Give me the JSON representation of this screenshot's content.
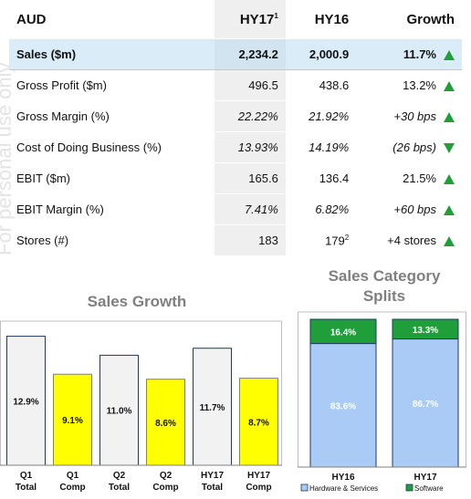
{
  "table": {
    "headers": [
      "AUD",
      "HY17",
      "1",
      "HY16",
      "Growth"
    ],
    "rows": [
      {
        "label": "Sales ($m)",
        "hy17": "2,234.2",
        "hy16": "2,000.9",
        "growth": "11.7%",
        "dir": "up",
        "italic": false,
        "highlight": true
      },
      {
        "label": "Gross Profit ($m)",
        "hy17": "496.5",
        "hy16": "438.6",
        "growth": "13.2%",
        "dir": "up",
        "italic": false,
        "highlight": false
      },
      {
        "label": "Gross Margin (%)",
        "hy17": "22.22%",
        "hy16": "21.92%",
        "growth": "+30 bps",
        "dir": "up",
        "italic": true,
        "highlight": false
      },
      {
        "label": "Cost of Doing Business (%)",
        "hy17": "13.93%",
        "hy16": "14.19%",
        "growth": "(26 bps)",
        "dir": "down",
        "italic": true,
        "highlight": false
      },
      {
        "label": "EBIT ($m)",
        "hy17": "165.6",
        "hy16": "136.4",
        "growth": "21.5%",
        "dir": "up",
        "italic": false,
        "highlight": false
      },
      {
        "label": "EBIT Margin (%)",
        "hy17": "7.41%",
        "hy16": "6.82%",
        "growth": "+60 bps",
        "dir": "up",
        "italic": true,
        "highlight": false
      },
      {
        "label": "Stores (#)",
        "hy17": "183",
        "hy16": "179",
        "hy16_sup": "2",
        "growth": "+4 stores",
        "dir": "up",
        "italic": false,
        "highlight": false
      }
    ]
  },
  "colors": {
    "arrow": "#1f9e3a",
    "highlight": "#d9ecf8",
    "yellow": "#ffff00",
    "grey_bar": "#f2f2f2",
    "bar_border": "#1f3864",
    "blue_stack": "#a9cbf5",
    "green_stack": "#1f9e3a"
  },
  "chart_data": [
    {
      "type": "bar",
      "title": "Sales Growth",
      "categories": [
        "Q1\nTotal",
        "Q1\nComp",
        "Q2\nTotal",
        "Q2\nComp",
        "HY17\nTotal",
        "HY17\nComp"
      ],
      "values": [
        12.9,
        9.1,
        11.0,
        8.6,
        11.7,
        8.7
      ],
      "labels": [
        "12.9%",
        "9.1%",
        "11.0%",
        "8.6%",
        "11.7%",
        "8.7%"
      ],
      "bar_colors": [
        "#f2f2f2",
        "#ffff00",
        "#f2f2f2",
        "#ffff00",
        "#f2f2f2",
        "#ffff00"
      ],
      "ylim": [
        0,
        13.5
      ]
    },
    {
      "type": "bar",
      "title": "Sales Category Splits",
      "categories": [
        "HY16",
        "HY17"
      ],
      "series": [
        {
          "name": "Hardware & Services",
          "values": [
            83.6,
            86.7
          ],
          "labels": [
            "83.6%",
            "86.7%"
          ]
        },
        {
          "name": "Software",
          "values": [
            16.4,
            13.3
          ],
          "labels": [
            "16.4%",
            "13.3%"
          ]
        }
      ],
      "stacked": true,
      "ylim": [
        0,
        100
      ],
      "legend": [
        "Hardware & Services",
        "Software"
      ]
    }
  ]
}
